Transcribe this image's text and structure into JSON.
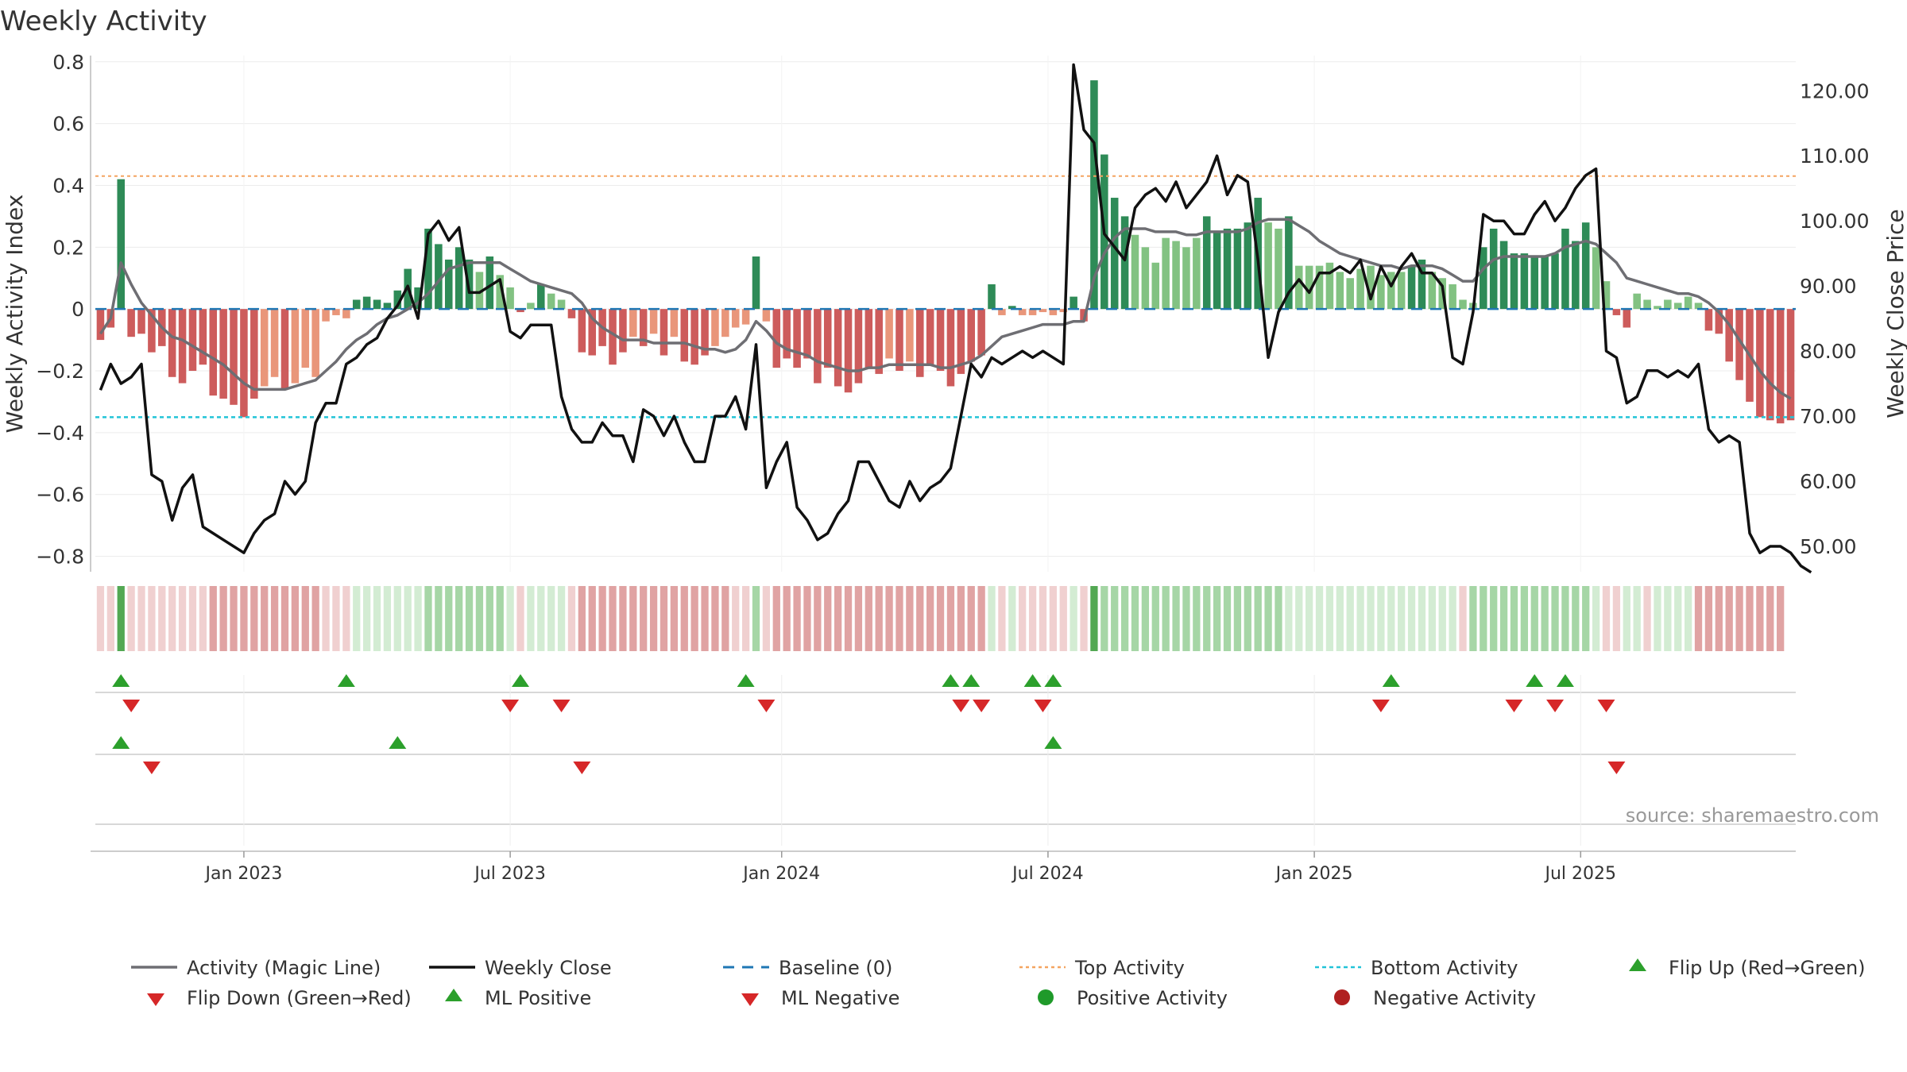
{
  "chart_data": {
    "type": "bar",
    "title": "Weekly Activity",
    "ylabel": "Weekly Activity Index",
    "y2label": "Weekly Close Price",
    "source": "source: sharemaestro.com",
    "ylim": [
      -0.85,
      0.82
    ],
    "y2lim": [
      46.1,
      125.4
    ],
    "yticks": [
      0.8,
      0.6,
      0.4,
      0.2,
      0,
      -0.2,
      -0.4,
      -0.6,
      -0.8
    ],
    "ytick_labels": [
      "0.8",
      "0.6",
      "0.4",
      "0.2",
      "0",
      "−0.2",
      "−0.4",
      "−0.6",
      "−0.8"
    ],
    "y2ticks": [
      120,
      110,
      100,
      90,
      80,
      70,
      60,
      50
    ],
    "y2tick_labels": [
      "120.00",
      "110.00",
      "100.00",
      "90.00",
      "80.00",
      "70.00",
      "60.00",
      "50.00"
    ],
    "xticks": [
      {
        "label": "Jan 2023",
        "week": 14
      },
      {
        "label": "Jul 2023",
        "week": 40
      },
      {
        "label": "Jan 2024",
        "week": 66.5
      },
      {
        "label": "Jul 2024",
        "week": 92.5
      },
      {
        "label": "Jan 2025",
        "week": 118.5
      },
      {
        "label": "Jul 2025",
        "week": 144.5
      }
    ],
    "top_activity": 0.43,
    "bottom_activity": -0.35,
    "baseline": 0,
    "activity": [
      -0.1,
      -0.06,
      0.42,
      -0.09,
      -0.08,
      -0.14,
      -0.12,
      -0.22,
      -0.24,
      -0.2,
      -0.18,
      -0.28,
      -0.29,
      -0.31,
      -0.35,
      -0.29,
      -0.25,
      -0.22,
      -0.26,
      -0.24,
      -0.19,
      -0.22,
      -0.04,
      -0.02,
      -0.03,
      0.03,
      0.04,
      0.03,
      0.02,
      0.06,
      0.13,
      0.07,
      0.26,
      0.21,
      0.16,
      0.2,
      0.16,
      0.12,
      0.17,
      0.11,
      0.07,
      -0.01,
      0.02,
      0.08,
      0.05,
      0.03,
      -0.03,
      -0.14,
      -0.15,
      -0.12,
      -0.18,
      -0.14,
      -0.09,
      -0.12,
      -0.08,
      -0.15,
      -0.09,
      -0.17,
      -0.18,
      -0.15,
      -0.12,
      -0.09,
      -0.06,
      -0.05,
      0.17,
      -0.04,
      -0.19,
      -0.16,
      -0.19,
      -0.16,
      -0.24,
      -0.19,
      -0.25,
      -0.27,
      -0.24,
      -0.19,
      -0.21,
      -0.16,
      -0.2,
      -0.17,
      -0.22,
      -0.18,
      -0.2,
      -0.25,
      -0.21,
      -0.17,
      -0.15,
      0.08,
      -0.02,
      0.01,
      -0.02,
      -0.02,
      -0.01,
      -0.02,
      -0.01,
      0.04,
      -0.04,
      0.74,
      0.5,
      0.36,
      0.3,
      0.24,
      0.2,
      0.15,
      0.23,
      0.22,
      0.2,
      0.23,
      0.3,
      0.25,
      0.26,
      0.26,
      0.28,
      0.36,
      0.28,
      0.26,
      0.3,
      0.14,
      0.14,
      0.14,
      0.15,
      0.12,
      0.1,
      0.13,
      0.14,
      0.11,
      0.12,
      0.12,
      0.14,
      0.16,
      0.12,
      0.1,
      0.08,
      0.03,
      0.02,
      0.2,
      0.26,
      0.22,
      0.18,
      0.18,
      0.17,
      0.17,
      0.18,
      0.26,
      0.22,
      0.28,
      0.2,
      0.09,
      -0.02,
      -0.06,
      0.05,
      0.03,
      0.01,
      0.03,
      0.02,
      0.04,
      0.02,
      -0.07,
      -0.08,
      -0.17,
      -0.23,
      -0.3,
      -0.35,
      -0.36,
      -0.37,
      -0.36
    ],
    "magic_line": [
      -0.08,
      -0.03,
      0.15,
      0.08,
      0.02,
      -0.02,
      -0.06,
      -0.09,
      -0.1,
      -0.12,
      -0.14,
      -0.16,
      -0.18,
      -0.21,
      -0.24,
      -0.26,
      -0.26,
      -0.26,
      -0.26,
      -0.25,
      -0.24,
      -0.23,
      -0.2,
      -0.17,
      -0.13,
      -0.1,
      -0.08,
      -0.05,
      -0.03,
      -0.02,
      0.0,
      0.02,
      0.05,
      0.09,
      0.13,
      0.14,
      0.15,
      0.15,
      0.15,
      0.15,
      0.13,
      0.11,
      0.09,
      0.08,
      0.07,
      0.06,
      0.05,
      0.02,
      -0.03,
      -0.06,
      -0.08,
      -0.1,
      -0.1,
      -0.1,
      -0.11,
      -0.11,
      -0.11,
      -0.11,
      -0.12,
      -0.13,
      -0.13,
      -0.14,
      -0.13,
      -0.1,
      -0.04,
      -0.07,
      -0.11,
      -0.13,
      -0.14,
      -0.15,
      -0.17,
      -0.18,
      -0.19,
      -0.2,
      -0.2,
      -0.19,
      -0.19,
      -0.18,
      -0.18,
      -0.18,
      -0.18,
      -0.18,
      -0.19,
      -0.19,
      -0.18,
      -0.17,
      -0.15,
      -0.12,
      -0.09,
      -0.08,
      -0.07,
      -0.06,
      -0.05,
      -0.05,
      -0.05,
      -0.04,
      -0.04,
      0.1,
      0.18,
      0.23,
      0.26,
      0.26,
      0.26,
      0.25,
      0.25,
      0.25,
      0.24,
      0.24,
      0.25,
      0.25,
      0.25,
      0.25,
      0.26,
      0.28,
      0.29,
      0.29,
      0.29,
      0.27,
      0.25,
      0.22,
      0.2,
      0.18,
      0.17,
      0.16,
      0.15,
      0.14,
      0.14,
      0.13,
      0.14,
      0.14,
      0.14,
      0.13,
      0.11,
      0.09,
      0.09,
      0.13,
      0.16,
      0.17,
      0.17,
      0.17,
      0.17,
      0.17,
      0.18,
      0.2,
      0.21,
      0.22,
      0.21,
      0.18,
      0.15,
      0.1,
      0.09,
      0.08,
      0.07,
      0.06,
      0.05,
      0.05,
      0.04,
      0.02,
      -0.01,
      -0.05,
      -0.1,
      -0.15,
      -0.2,
      -0.24,
      -0.27,
      -0.29
    ],
    "weekly_close": [
      74,
      78,
      75,
      76,
      78,
      61,
      60,
      54,
      59,
      61,
      53,
      52,
      51,
      50,
      49,
      52,
      54,
      55,
      60,
      58,
      60,
      69,
      72,
      72,
      78,
      79,
      81,
      82,
      85,
      87,
      90,
      85,
      98,
      100,
      97,
      99,
      89,
      89,
      90,
      91,
      83,
      82,
      84,
      84,
      84,
      73,
      68,
      66,
      66,
      69,
      67,
      67,
      63,
      71,
      70,
      67,
      70,
      66,
      63,
      63,
      70,
      70,
      73,
      68,
      81,
      59,
      63,
      66,
      56,
      54,
      51,
      52,
      55,
      57,
      63,
      63,
      60,
      57,
      56,
      60,
      57,
      59,
      60,
      62,
      70,
      78,
      76,
      79,
      78,
      79,
      80,
      79,
      80,
      79,
      78,
      124,
      114,
      112,
      98,
      96,
      94,
      102,
      104,
      105,
      103,
      106,
      102,
      104,
      106,
      110,
      104,
      107,
      106,
      94,
      79,
      86,
      89,
      91,
      89,
      92,
      92,
      93,
      92,
      94,
      88,
      93,
      90,
      93,
      95,
      92,
      92,
      90,
      79,
      78,
      86,
      101,
      100,
      100,
      98,
      98,
      101,
      103,
      100,
      102,
      105,
      107,
      108,
      80,
      79,
      72,
      73,
      77,
      77,
      76,
      77,
      76,
      78,
      68,
      66,
      67,
      66,
      52,
      49,
      50,
      50,
      49,
      47,
      46
    ],
    "signal_strip": [
      "r1",
      "r1",
      "g3",
      "r1",
      "r1",
      "r1",
      "r1",
      "r1",
      "r1",
      "r1",
      "r1",
      "r2",
      "r2",
      "r2",
      "r2",
      "r2",
      "r2",
      "r2",
      "r2",
      "r2",
      "r2",
      "r2",
      "r1",
      "r1",
      "r1",
      "g1",
      "g1",
      "g1",
      "g1",
      "g1",
      "g1",
      "g1",
      "g2",
      "g2",
      "g2",
      "g2",
      "g2",
      "g2",
      "g2",
      "g2",
      "g1",
      "r1",
      "g1",
      "g1",
      "g1",
      "g1",
      "r1",
      "r2",
      "r2",
      "r2",
      "r2",
      "r2",
      "r2",
      "r2",
      "r2",
      "r2",
      "r2",
      "r2",
      "r2",
      "r2",
      "r2",
      "r2",
      "r1",
      "r1",
      "g2",
      "r1",
      "r2",
      "r2",
      "r2",
      "r2",
      "r2",
      "r2",
      "r2",
      "r2",
      "r2",
      "r2",
      "r2",
      "r2",
      "r2",
      "r2",
      "r2",
      "r2",
      "r2",
      "r2",
      "r2",
      "r2",
      "r2",
      "g1",
      "r1",
      "g1",
      "r1",
      "r1",
      "r1",
      "r1",
      "r1",
      "g1",
      "r1",
      "g3",
      "g2",
      "g2",
      "g2",
      "g2",
      "g2",
      "g2",
      "g2",
      "g2",
      "g2",
      "g2",
      "g2",
      "g2",
      "g2",
      "g2",
      "g2",
      "g2",
      "g2",
      "g2",
      "g1",
      "g1",
      "g1",
      "g1",
      "g1",
      "g1",
      "g1",
      "g1",
      "g1",
      "g1",
      "g1",
      "g1",
      "g1",
      "g1",
      "g1",
      "g1",
      "g1",
      "r1",
      "g2",
      "g2",
      "g2",
      "g2",
      "g2",
      "g2",
      "g2",
      "g2",
      "g2",
      "g2",
      "g2",
      "g2",
      "g1",
      "r1",
      "r1",
      "g1",
      "g1",
      "r1",
      "g1",
      "g1",
      "g1",
      "g1",
      "r2",
      "r2",
      "r2",
      "r2",
      "r2",
      "r2",
      "r2",
      "r2",
      "r2"
    ],
    "flip_up_weeks": [
      2,
      24,
      41,
      63,
      83,
      85,
      91,
      93,
      126,
      140,
      143
    ],
    "flip_down_weeks": [
      3,
      40,
      45,
      65,
      84,
      86,
      92,
      125,
      138,
      142,
      147
    ],
    "ml_positive_weeks": [
      2,
      29,
      93
    ],
    "ml_negative_weeks": [
      5,
      47,
      148
    ],
    "legend": [
      {
        "key": "magic",
        "label": "Activity (Magic Line)"
      },
      {
        "key": "close",
        "label": "Weekly Close"
      },
      {
        "key": "baseline",
        "label": "Baseline (0)"
      },
      {
        "key": "top",
        "label": "Top Activity"
      },
      {
        "key": "bottom",
        "label": "Bottom Activity"
      },
      {
        "key": "flipup",
        "label": "Flip Up (Red→Green)"
      },
      {
        "key": "flipdown",
        "label": "Flip Down (Green→Red)"
      },
      {
        "key": "mlpos",
        "label": "ML Positive"
      },
      {
        "key": "mlneg",
        "label": "ML Negative"
      },
      {
        "key": "posact",
        "label": "Positive Activity"
      },
      {
        "key": "negact",
        "label": "Negative Activity"
      }
    ]
  },
  "colors": {
    "green_dark": "#2e8b57",
    "green_light": "#82c282",
    "red_dark": "#cd5c5c",
    "red_light": "#e9967a",
    "magic_line": "#6e6e73",
    "close_line": "#111111",
    "baseline": "#1f77b4",
    "top": "#f4a460",
    "bottom": "#22c4d8",
    "marker_up": "#2ca02c",
    "marker_down": "#d62728",
    "pos_activity": "#1f9a2a",
    "neg_activity": "#b02020",
    "strip": {
      "g1": "#d3ecd3",
      "g2": "#a6d6a6",
      "g3": "#53a853",
      "r1": "#f0d0d0",
      "r2": "#e0a3a3"
    }
  }
}
